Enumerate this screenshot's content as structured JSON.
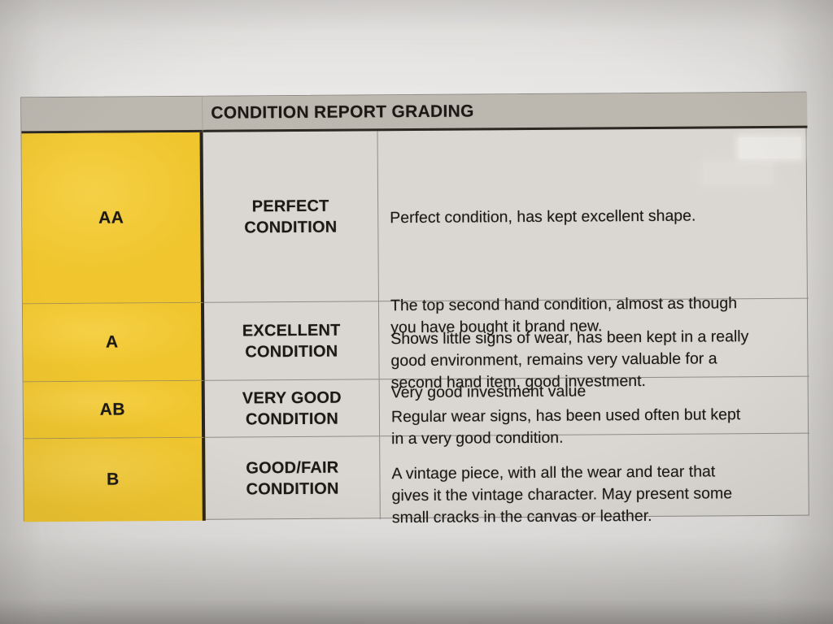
{
  "table": {
    "title": "CONDITION REPORT GRADING",
    "rows": [
      {
        "grade": "AA",
        "condition": "PERFECT\nCONDITION",
        "paragraphs": [
          "Perfect condition, has kept excellent shape.",
          "The top second hand condition, almost as though\nyou have bought it brand new.",
          "Very good investment value"
        ]
      },
      {
        "grade": "A",
        "condition": "EXCELLENT\nCONDITION",
        "paragraphs": [
          "Shows little signs of wear, has been kept in a really\ngood environment, remains very valuable for a\nsecond hand item, good investment."
        ]
      },
      {
        "grade": "AB",
        "condition": "VERY GOOD\nCONDITION",
        "paragraphs": [
          "Regular wear signs, has been used often but kept\nin a very good condition."
        ]
      },
      {
        "grade": "B",
        "condition": "GOOD/FAIR\nCONDITION",
        "paragraphs": [
          "A vintage piece, with all the wear and tear that\ngives it the vintage character. May present some\nsmall cracks in the canvas or leather."
        ]
      }
    ],
    "colors": {
      "grade_column": "#f0c52d",
      "header_bg": "#bcb8b0",
      "cell_bg": "#dad7d2",
      "text": "#1c1915"
    }
  }
}
